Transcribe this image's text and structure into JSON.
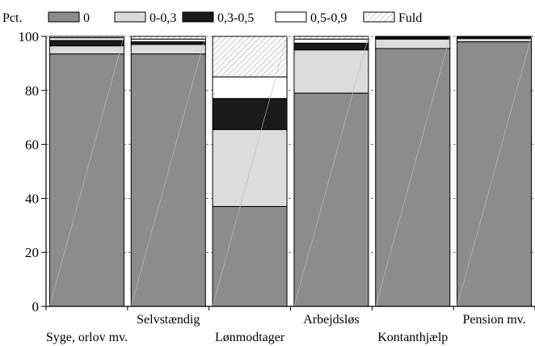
{
  "chart_data": {
    "type": "bar",
    "stacked": true,
    "ylabel": "Pct.",
    "ylim": [
      0,
      100
    ],
    "yticks": [
      0,
      20,
      40,
      60,
      80,
      100
    ],
    "legend_position": "top",
    "categories": [
      "Syge, orlov mv.",
      "Selvstændig",
      "Lønmodtager",
      "Arbejdsløs",
      "Kontanthjælp",
      "Pension mv."
    ],
    "series": [
      {
        "name": "0",
        "color": "#8c8c8c",
        "pattern": "solid",
        "values": [
          93.5,
          93.5,
          37.0,
          79.0,
          95.5,
          98.0
        ]
      },
      {
        "name": "0-0,3",
        "color": "#dcdcdc",
        "pattern": "solid",
        "values": [
          3.0,
          3.5,
          28.5,
          16.0,
          3.5,
          1.2
        ]
      },
      {
        "name": "0,3-0,5",
        "color": "#1a1a1a",
        "pattern": "solid",
        "values": [
          2.0,
          1.0,
          11.5,
          2.5,
          0.5,
          0.5
        ]
      },
      {
        "name": "0,5-0,9",
        "color": "#ffffff",
        "pattern": "solid",
        "values": [
          1.0,
          1.0,
          8.0,
          1.5,
          0.3,
          0.2
        ]
      },
      {
        "name": "Fuld",
        "color": "#ffffff",
        "pattern": "hatch",
        "values": [
          0.5,
          1.0,
          15.0,
          1.0,
          0.2,
          0.1
        ]
      }
    ]
  }
}
